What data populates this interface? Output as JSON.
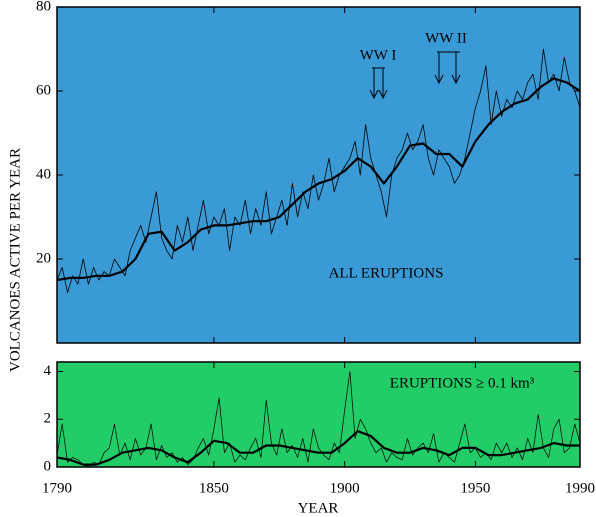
{
  "chart_data": [
    {
      "type": "line",
      "ylabel": "VOLCANOES ACTIVE  PER  YEAR",
      "background": "#3a9ad6",
      "annotations": [
        "WW I",
        "WW II",
        "ALL ERUPTIONS"
      ],
      "xlim": [
        1790,
        1990
      ],
      "xticks": [
        1790,
        1850,
        1900,
        1950,
        1990
      ],
      "ylim": [
        0,
        80
      ],
      "yticks": [
        20,
        40,
        60,
        80
      ],
      "series": [
        {
          "color": "#000000",
          "line_width": 0.8,
          "x": [
            1790,
            1792,
            1794,
            1796,
            1798,
            1800,
            1802,
            1804,
            1806,
            1808,
            1810,
            1812,
            1814,
            1816,
            1818,
            1820,
            1822,
            1824,
            1826,
            1828,
            1830,
            1832,
            1834,
            1836,
            1838,
            1840,
            1842,
            1844,
            1846,
            1848,
            1850,
            1852,
            1854,
            1856,
            1858,
            1860,
            1862,
            1864,
            1866,
            1868,
            1870,
            1872,
            1874,
            1876,
            1878,
            1880,
            1882,
            1884,
            1886,
            1888,
            1890,
            1892,
            1894,
            1896,
            1898,
            1900,
            1902,
            1904,
            1906,
            1908,
            1910,
            1912,
            1914,
            1916,
            1918,
            1920,
            1922,
            1924,
            1926,
            1928,
            1930,
            1932,
            1934,
            1936,
            1938,
            1940,
            1942,
            1944,
            1946,
            1948,
            1950,
            1952,
            1954,
            1956,
            1958,
            1960,
            1962,
            1964,
            1966,
            1968,
            1970,
            1972,
            1974,
            1976,
            1978,
            1980,
            1982,
            1984,
            1986,
            1988,
            1990
          ],
          "values": [
            15,
            18,
            12,
            16,
            14,
            20,
            14,
            18,
            15,
            17,
            16,
            20,
            18,
            16,
            22,
            25,
            28,
            24,
            30,
            36,
            25,
            22,
            20,
            28,
            24,
            30,
            22,
            28,
            34,
            26,
            30,
            28,
            32,
            22,
            30,
            28,
            34,
            26,
            32,
            28,
            36,
            26,
            30,
            34,
            28,
            38,
            30,
            36,
            32,
            40,
            34,
            38,
            44,
            36,
            40,
            42,
            44,
            48,
            40,
            52,
            44,
            40,
            36,
            30,
            40,
            44,
            46,
            50,
            46,
            48,
            52,
            44,
            40,
            46,
            44,
            42,
            38,
            40,
            44,
            50,
            56,
            60,
            66,
            52,
            60,
            54,
            58,
            56,
            60,
            58,
            62,
            64,
            58,
            70,
            62,
            64,
            60,
            68,
            62,
            60,
            56
          ]
        },
        {
          "color": "#000000",
          "line_width": 2.2,
          "x": [
            1790,
            1795,
            1800,
            1805,
            1810,
            1815,
            1820,
            1825,
            1830,
            1835,
            1840,
            1845,
            1850,
            1855,
            1860,
            1865,
            1870,
            1875,
            1880,
            1885,
            1890,
            1895,
            1900,
            1905,
            1910,
            1915,
            1920,
            1925,
            1930,
            1935,
            1940,
            1945,
            1950,
            1955,
            1960,
            1965,
            1970,
            1975,
            1980,
            1985,
            1990
          ],
          "values": [
            15,
            15.5,
            15.5,
            16,
            16,
            17,
            20,
            26,
            26.5,
            22,
            24,
            27,
            28,
            28,
            28.5,
            29,
            29,
            30,
            33,
            36,
            38,
            39,
            41,
            44,
            42,
            38,
            42,
            47,
            47.5,
            45,
            45,
            42,
            48,
            52,
            55,
            57,
            58,
            61,
            63,
            62,
            60
          ]
        }
      ]
    },
    {
      "type": "line",
      "xlabel": "YEAR",
      "background": "#22cc66",
      "annotations": [
        "ERUPTIONS ≥ 0.1 km³"
      ],
      "xlim": [
        1790,
        1990
      ],
      "xticks": [
        1790,
        1850,
        1900,
        1950,
        1990
      ],
      "ylim": [
        0,
        4.4
      ],
      "yticks": [
        0,
        2,
        4
      ],
      "series": [
        {
          "color": "#000000",
          "line_width": 0.7,
          "x": [
            1790,
            1792,
            1794,
            1796,
            1798,
            1800,
            1802,
            1804,
            1806,
            1808,
            1810,
            1812,
            1814,
            1816,
            1818,
            1820,
            1822,
            1824,
            1826,
            1828,
            1830,
            1832,
            1834,
            1836,
            1838,
            1840,
            1842,
            1844,
            1846,
            1848,
            1850,
            1852,
            1854,
            1856,
            1858,
            1860,
            1862,
            1864,
            1866,
            1868,
            1870,
            1872,
            1874,
            1876,
            1878,
            1880,
            1882,
            1884,
            1886,
            1888,
            1890,
            1892,
            1894,
            1896,
            1898,
            1900,
            1902,
            1904,
            1906,
            1908,
            1910,
            1912,
            1914,
            1916,
            1918,
            1920,
            1922,
            1924,
            1926,
            1928,
            1930,
            1932,
            1934,
            1936,
            1938,
            1940,
            1942,
            1944,
            1946,
            1948,
            1950,
            1952,
            1954,
            1956,
            1958,
            1960,
            1962,
            1964,
            1966,
            1968,
            1970,
            1972,
            1974,
            1976,
            1978,
            1980,
            1982,
            1984,
            1986,
            1988,
            1990
          ],
          "values": [
            0.5,
            1.8,
            0.2,
            0.4,
            0.3,
            0.1,
            0,
            0.2,
            0.1,
            0.6,
            0.8,
            1.8,
            0.5,
            1.0,
            0.3,
            1.2,
            0.5,
            0.8,
            1.8,
            0.3,
            0.9,
            0.4,
            0.6,
            0.2,
            0.4,
            0.1,
            0.3,
            0.8,
            1.2,
            0.5,
            1.6,
            2.9,
            0.6,
            1.0,
            0.2,
            0.5,
            0.3,
            0.8,
            1.2,
            0.4,
            2.8,
            1.0,
            0.5,
            1.6,
            0.6,
            0.9,
            0.4,
            1.2,
            0.2,
            1.6,
            0.8,
            0.5,
            0.3,
            1.0,
            0.6,
            2.4,
            4.0,
            1.2,
            2.0,
            1.6,
            1.0,
            0.6,
            0.8,
            0.2,
            0.6,
            0.4,
            0.3,
            1.2,
            0.5,
            0.8,
            1.0,
            0.6,
            1.4,
            0.2,
            0.6,
            0.4,
            0.2,
            1.0,
            1.8,
            0.6,
            0.8,
            0.4,
            0.6,
            0.3,
            1.0,
            0.6,
            1.0,
            0.4,
            0.8,
            0.3,
            1.2,
            0.6,
            2.2,
            0.8,
            0.4,
            1.6,
            2.0,
            0.6,
            0.8,
            1.8,
            1.0
          ]
        },
        {
          "color": "#000000",
          "line_width": 2.2,
          "x": [
            1790,
            1795,
            1800,
            1805,
            1810,
            1815,
            1820,
            1825,
            1830,
            1835,
            1840,
            1845,
            1850,
            1855,
            1860,
            1865,
            1870,
            1875,
            1880,
            1885,
            1890,
            1895,
            1900,
            1905,
            1910,
            1915,
            1920,
            1925,
            1930,
            1935,
            1940,
            1945,
            1950,
            1955,
            1960,
            1965,
            1970,
            1975,
            1980,
            1985,
            1990
          ],
          "values": [
            0.4,
            0.3,
            0.1,
            0.1,
            0.3,
            0.6,
            0.7,
            0.8,
            0.7,
            0.4,
            0.2,
            0.6,
            1.1,
            1.0,
            0.6,
            0.6,
            0.9,
            0.9,
            0.8,
            0.7,
            0.6,
            0.6,
            1.0,
            1.5,
            1.3,
            0.8,
            0.6,
            0.6,
            0.8,
            0.7,
            0.5,
            0.8,
            0.8,
            0.5,
            0.5,
            0.6,
            0.7,
            0.8,
            1.0,
            0.9,
            0.9
          ]
        }
      ]
    }
  ]
}
